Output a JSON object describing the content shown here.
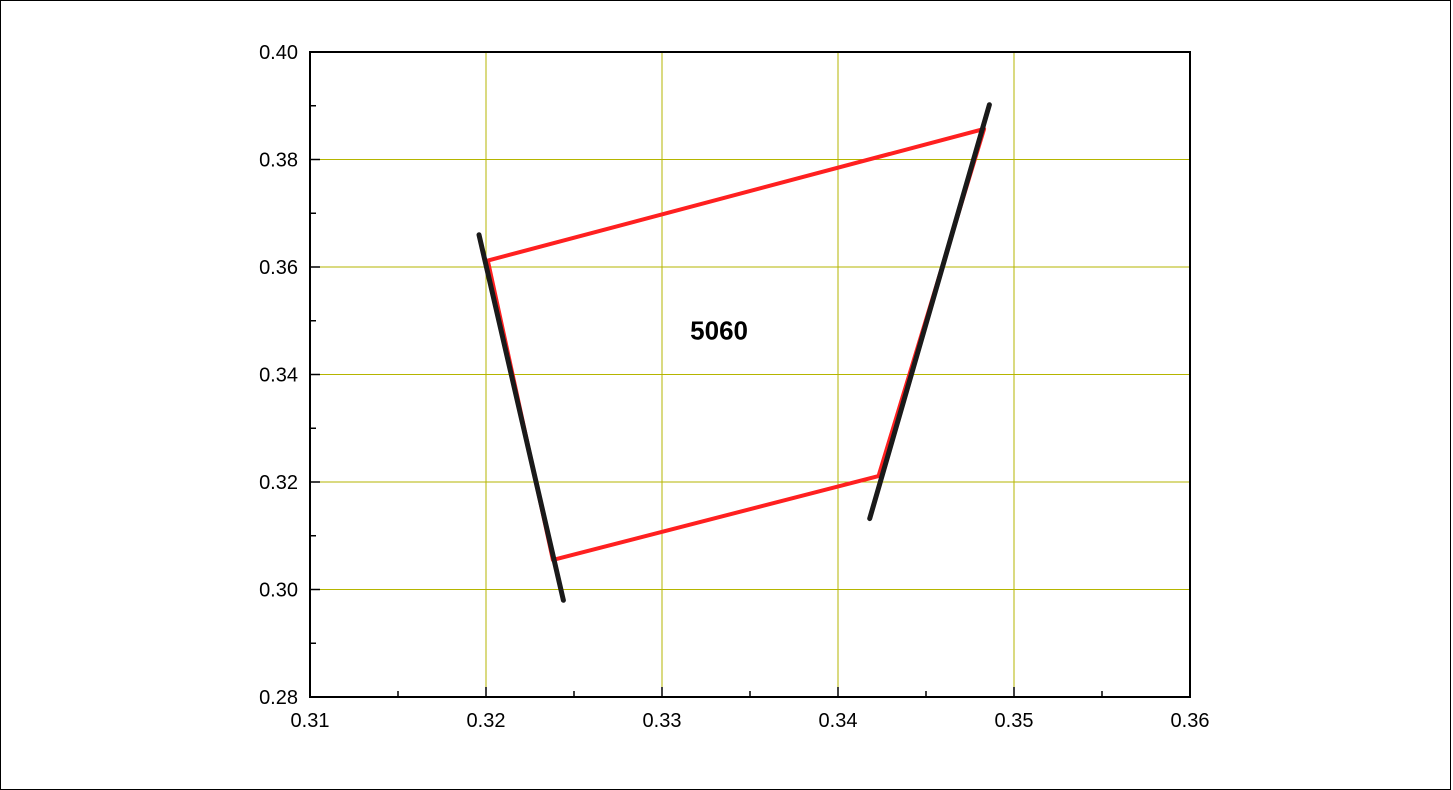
{
  "chart_data": {
    "type": "line",
    "title": "",
    "xlabel": "",
    "ylabel": "",
    "xlim": [
      0.31,
      0.36
    ],
    "ylim": [
      0.28,
      0.4
    ],
    "x_ticks": [
      0.31,
      0.32,
      0.33,
      0.34,
      0.35,
      0.36
    ],
    "x_tick_labels": [
      "0.31",
      "0.32",
      "0.33",
      "0.34",
      "0.35",
      "0.36"
    ],
    "y_ticks": [
      0.28,
      0.3,
      0.32,
      0.34,
      0.36,
      0.38,
      0.4
    ],
    "y_tick_labels": [
      "0.28",
      "0.30",
      "0.32",
      "0.34",
      "0.36",
      "0.38",
      "0.40"
    ],
    "grid": true,
    "grid_color": "#b5b500",
    "annotation": "5060",
    "annotation_position": {
      "x": 0.3316,
      "y": 0.3465
    },
    "series": [
      {
        "color": "#ff2020",
        "points": [
          [
            0.3201,
            0.3612
          ],
          [
            0.3483,
            0.3857
          ],
          [
            0.3423,
            0.3211
          ],
          [
            0.3238,
            0.3055
          ],
          [
            0.3201,
            0.3612
          ]
        ]
      },
      {
        "color": "#1a1a1a",
        "points": [
          [
            0.3196,
            0.366
          ],
          [
            0.3244,
            0.298
          ]
        ]
      },
      {
        "color": "#1a1a1a",
        "points": [
          [
            0.3486,
            0.3902
          ],
          [
            0.3418,
            0.3132
          ]
        ]
      }
    ]
  }
}
